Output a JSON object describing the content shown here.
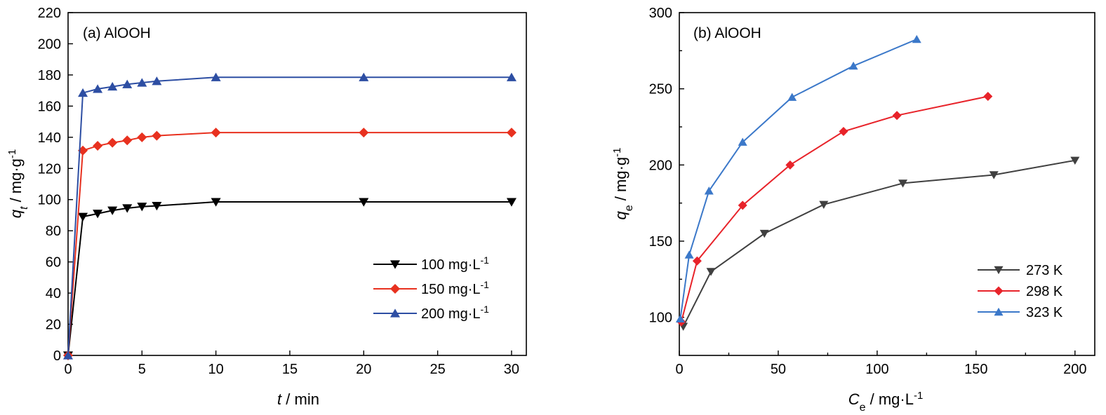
{
  "chart_data": [
    {
      "type": "line",
      "title": "(a) AlOOH",
      "xlabel": "t / min",
      "ylabel": "q_t / mg·g⁻¹",
      "xlim": [
        0,
        31
      ],
      "ylim": [
        0,
        220
      ],
      "xticks": [
        0,
        5,
        10,
        15,
        20,
        25,
        30
      ],
      "yticks": [
        0,
        20,
        40,
        60,
        80,
        100,
        120,
        140,
        160,
        180,
        200,
        220
      ],
      "grid": false,
      "legend_position": "bottom-right",
      "series": [
        {
          "name": "100 mg·L",
          "sup": "-1",
          "color": "#000000",
          "marker": "triangle-down",
          "x": [
            0,
            1,
            2,
            3,
            4,
            5,
            6,
            10,
            20,
            30
          ],
          "y": [
            0,
            89,
            91,
            93,
            94.5,
            95.5,
            96,
            98.5,
            98.5,
            98.5
          ]
        },
        {
          "name": "150 mg·L",
          "sup": "-1",
          "color": "#e8311f",
          "marker": "diamond",
          "x": [
            0,
            1,
            2,
            3,
            4,
            5,
            6,
            10,
            20,
            30
          ],
          "y": [
            0,
            131.5,
            134.5,
            136.5,
            138,
            140,
            141,
            143,
            143,
            143
          ]
        },
        {
          "name": "200 mg·L",
          "sup": "-1",
          "color": "#2d4ea3",
          "marker": "triangle-up",
          "x": [
            0,
            1,
            2,
            3,
            4,
            5,
            6,
            10,
            20,
            30
          ],
          "y": [
            0,
            168.5,
            171,
            172.5,
            174,
            175,
            176,
            178.5,
            178.5,
            178.5
          ]
        }
      ]
    },
    {
      "type": "line",
      "title": "(b) AlOOH",
      "xlabel": "C_e / mg·L⁻¹",
      "ylabel": "q_e / mg·g⁻¹",
      "xlim": [
        0,
        210
      ],
      "ylim": [
        75,
        300
      ],
      "xticks": [
        0,
        50,
        100,
        150,
        200
      ],
      "yticks": [
        100,
        150,
        200,
        250,
        300
      ],
      "grid": false,
      "legend_position": "bottom-right",
      "series": [
        {
          "name": "273 K",
          "color": "#404040",
          "marker": "triangle-down",
          "x": [
            2,
            16,
            43,
            73,
            113,
            159,
            200
          ],
          "y": [
            94,
            130,
            155,
            174,
            188,
            193.5,
            203
          ]
        },
        {
          "name": "298 K",
          "color": "#e8232a",
          "marker": "diamond",
          "x": [
            1,
            9,
            32,
            56,
            83,
            110,
            156
          ],
          "y": [
            97,
            137,
            173.5,
            200,
            222,
            232.5,
            245
          ]
        },
        {
          "name": "323 K",
          "color": "#3b78c9",
          "marker": "triangle-up",
          "x": [
            0.5,
            5,
            15,
            32,
            57,
            88,
            120
          ],
          "y": [
            99,
            141,
            183,
            215,
            244.5,
            265,
            282.5
          ]
        }
      ]
    }
  ]
}
